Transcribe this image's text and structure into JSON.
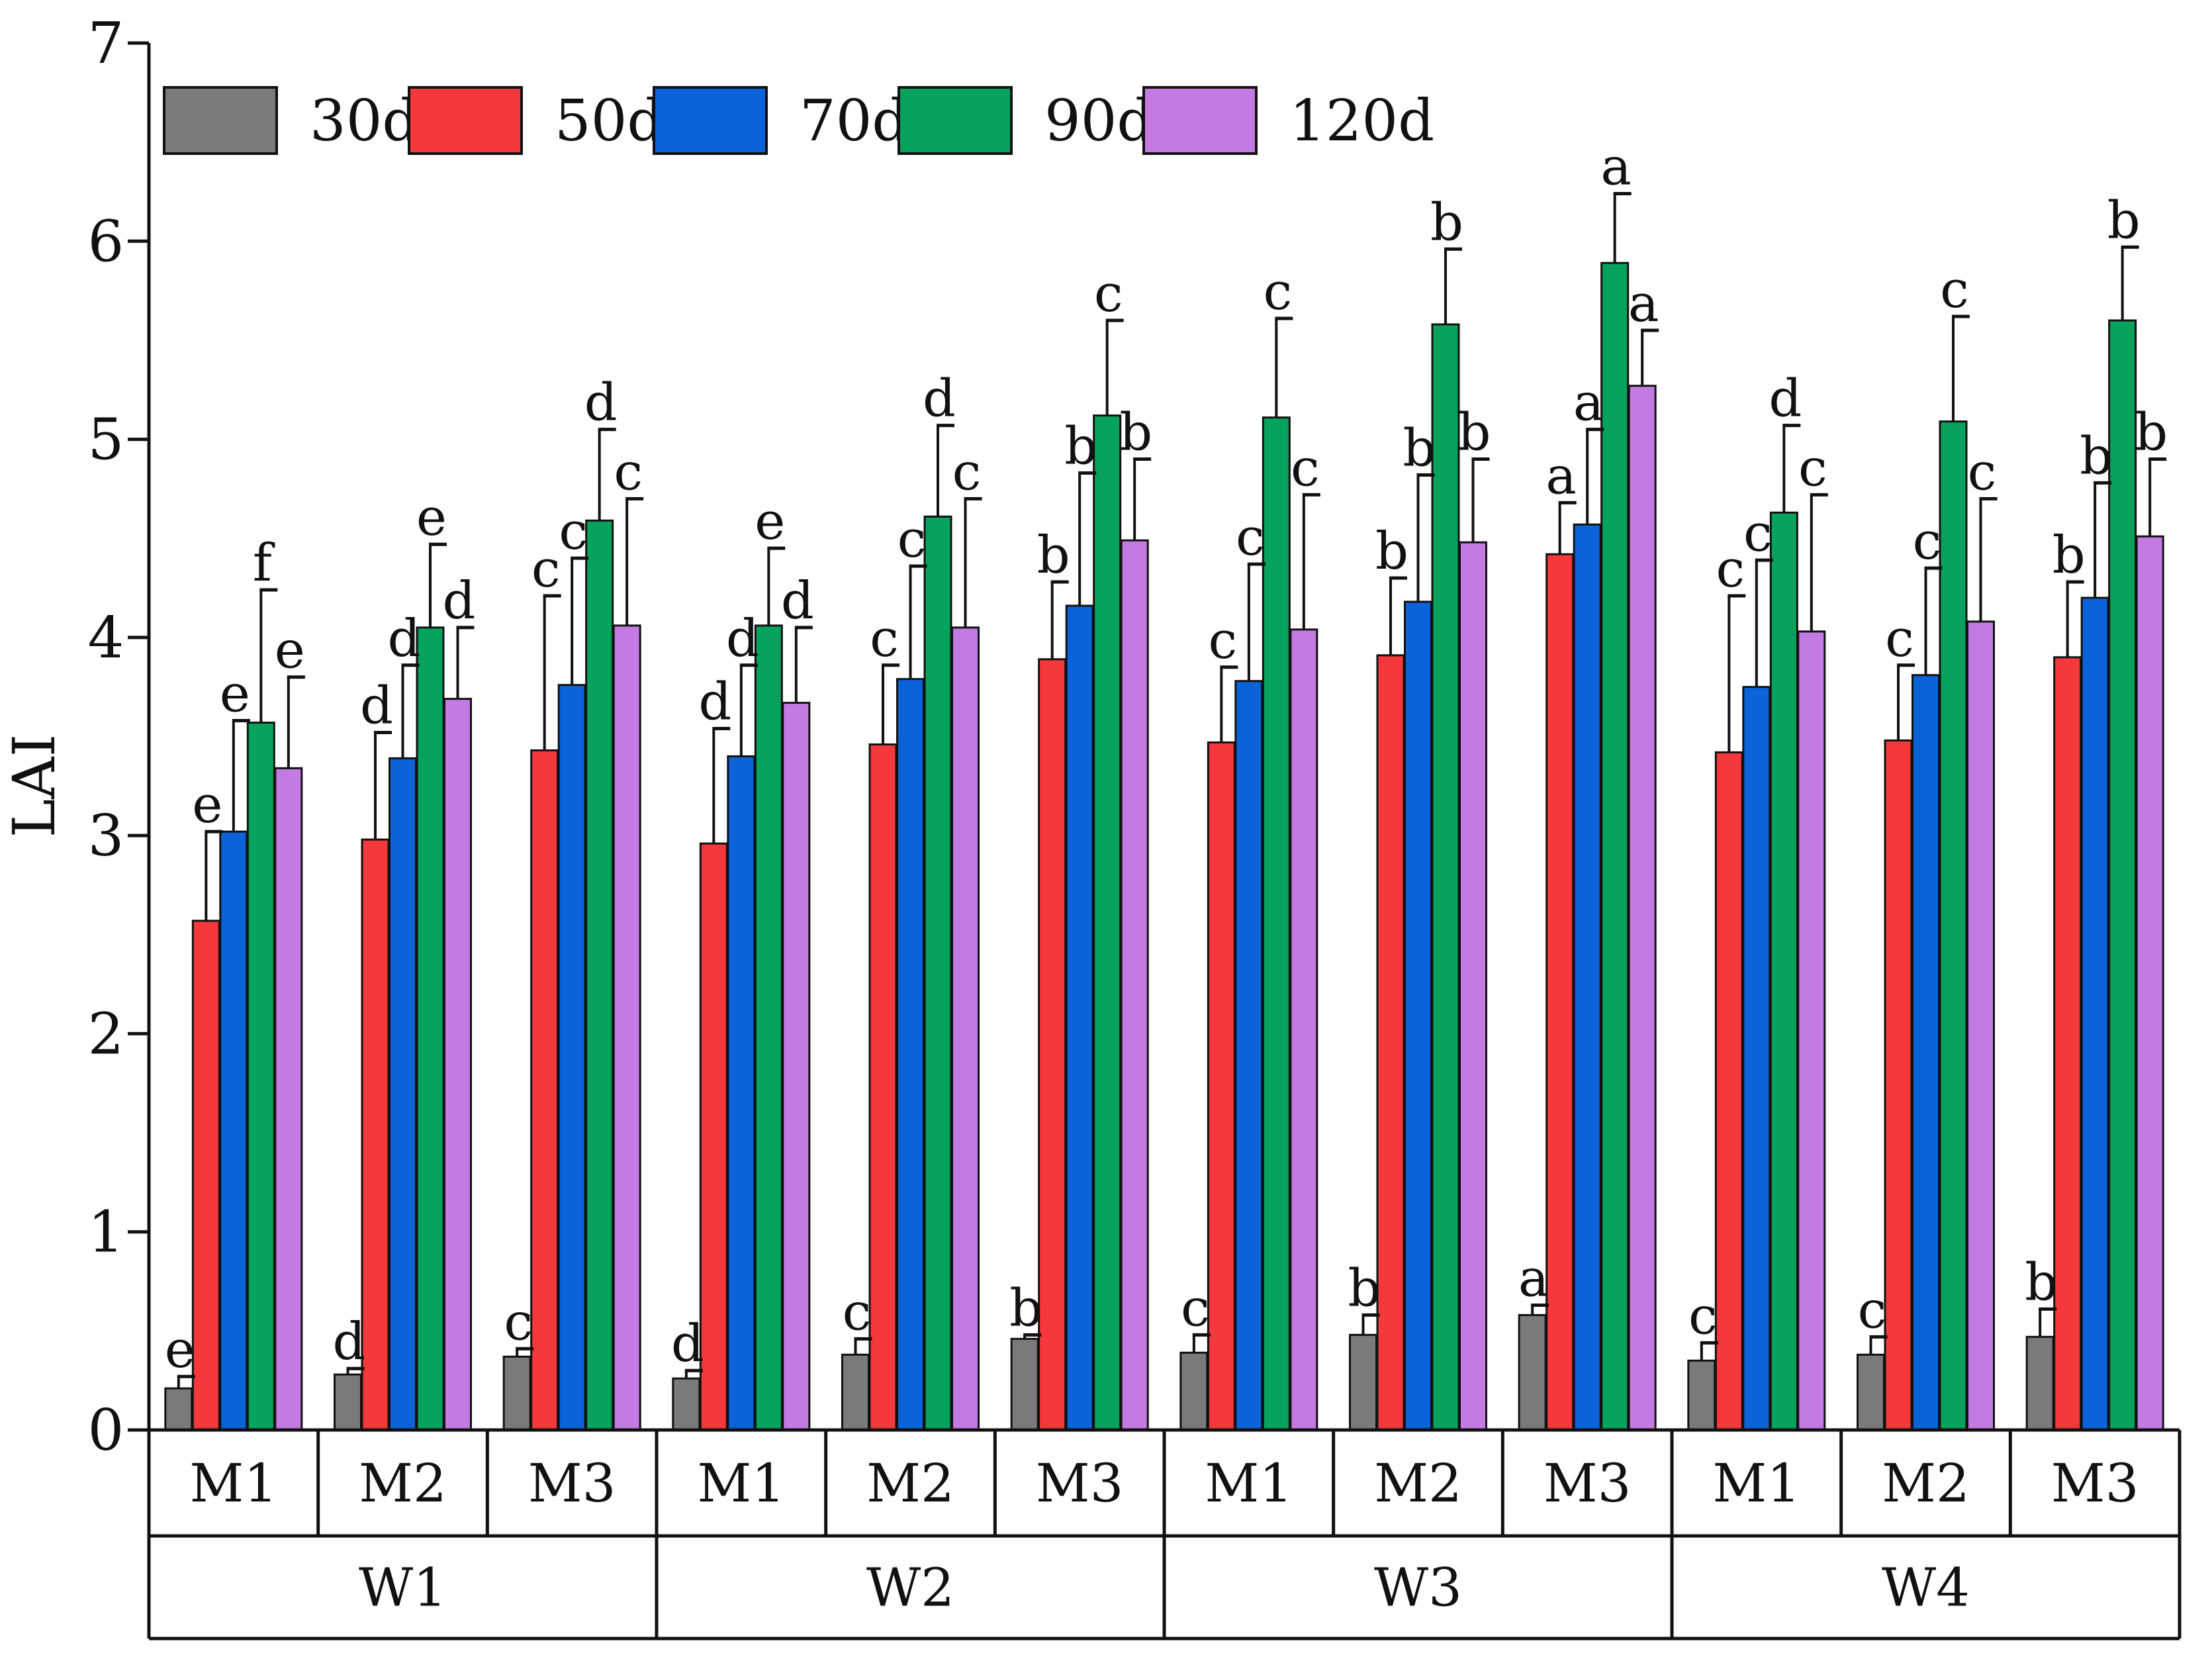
{
  "chart_data": {
    "type": "bar",
    "ylabel": "LAI",
    "ylim": [
      0,
      7
    ],
    "yticks": [
      0,
      1,
      2,
      3,
      4,
      5,
      6,
      7
    ],
    "grid": false,
    "legend_position": "top-left",
    "categories": [
      "M1",
      "M2",
      "M3",
      "M1",
      "M2",
      "M3",
      "M1",
      "M2",
      "M3",
      "M1",
      "M2",
      "M3"
    ],
    "groups": [
      {
        "label": "W1",
        "span": [
          0,
          2
        ]
      },
      {
        "label": "W2",
        "span": [
          3,
          5
        ]
      },
      {
        "label": "W3",
        "span": [
          6,
          8
        ]
      },
      {
        "label": "W4",
        "span": [
          9,
          11
        ]
      }
    ],
    "series": [
      {
        "name": "30d",
        "color": "#7a7a7a",
        "values": [
          0.21,
          0.28,
          0.37,
          0.26,
          0.38,
          0.46,
          0.39,
          0.48,
          0.58,
          0.35,
          0.38,
          0.47
        ],
        "errors": [
          0.06,
          0.03,
          0.04,
          0.04,
          0.08,
          0.02,
          0.09,
          0.1,
          0.05,
          0.09,
          0.09,
          0.14
        ],
        "letters": [
          "e",
          "d",
          "c",
          "d",
          "c",
          "b",
          "c",
          "b",
          "a",
          "c",
          "c",
          "b"
        ]
      },
      {
        "name": "50d",
        "color": "#f5383b",
        "values": [
          2.57,
          2.98,
          3.43,
          2.96,
          3.46,
          3.89,
          3.47,
          3.91,
          4.42,
          3.42,
          3.48,
          3.9
        ],
        "errors": [
          0.45,
          0.54,
          0.78,
          0.58,
          0.4,
          0.39,
          0.38,
          0.39,
          0.26,
          0.79,
          0.38,
          0.38
        ],
        "letters": [
          "e",
          "d",
          "c",
          "d",
          "c",
          "b",
          "c",
          "b",
          "a",
          "c",
          "c",
          "b"
        ]
      },
      {
        "name": "70d",
        "color": "#0b63d9",
        "values": [
          3.02,
          3.39,
          3.76,
          3.4,
          3.79,
          4.16,
          3.78,
          4.18,
          4.57,
          3.75,
          3.81,
          4.2
        ],
        "errors": [
          0.56,
          0.47,
          0.64,
          0.46,
          0.57,
          0.67,
          0.59,
          0.64,
          0.48,
          0.64,
          0.54,
          0.58
        ],
        "letters": [
          "e",
          "d",
          "c",
          "d",
          "c",
          "b",
          "c",
          "b",
          "a",
          "c",
          "c",
          "b"
        ]
      },
      {
        "name": "90d",
        "color": "#07a35c",
        "values": [
          3.57,
          4.05,
          4.59,
          4.06,
          4.61,
          5.12,
          5.11,
          5.58,
          5.89,
          4.63,
          5.09,
          5.6
        ],
        "errors": [
          0.67,
          0.42,
          0.46,
          0.39,
          0.46,
          0.48,
          0.5,
          0.38,
          0.35,
          0.44,
          0.53,
          0.37
        ],
        "letters": [
          "f",
          "e",
          "d",
          "e",
          "d",
          "c",
          "c",
          "b",
          "a",
          "d",
          "c",
          "b"
        ]
      },
      {
        "name": "120d",
        "color": "#c37be3",
        "values": [
          3.34,
          3.69,
          4.06,
          3.67,
          4.05,
          4.49,
          4.04,
          4.48,
          5.27,
          4.03,
          4.08,
          4.51
        ],
        "errors": [
          0.46,
          0.36,
          0.64,
          0.38,
          0.65,
          0.41,
          0.68,
          0.42,
          0.28,
          0.69,
          0.62,
          0.39
        ],
        "letters": [
          "e",
          "d",
          "c",
          "d",
          "c",
          "b",
          "c",
          "b",
          "a",
          "c",
          "c",
          "b"
        ]
      }
    ]
  }
}
